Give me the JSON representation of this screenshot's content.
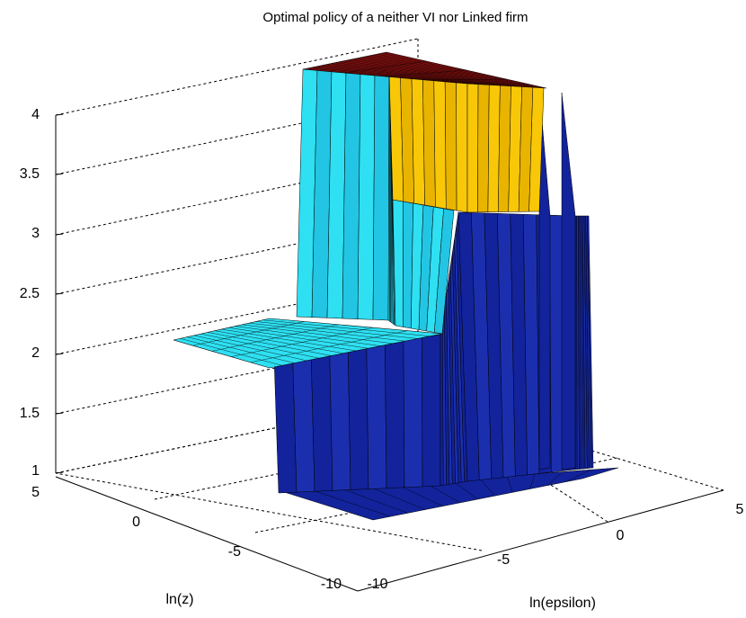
{
  "chart_data": {
    "type": "surface",
    "title": "Optimal policy of a neither VI nor Linked firm",
    "xlabel": "ln(epsilon)",
    "ylabel": "ln(z)",
    "zlabel": "",
    "x_ticks": [
      "-10",
      "-5",
      "0",
      "5"
    ],
    "y_ticks": [
      "-10",
      "-5",
      "0",
      "5"
    ],
    "z_ticks": [
      "1",
      "1.5",
      "2",
      "2.5",
      "3",
      "3.5",
      "4"
    ],
    "xlim": [
      -10,
      5
    ],
    "ylim": [
      -10,
      5
    ],
    "zlim": [
      1,
      4
    ],
    "grid": true,
    "policy_levels": [
      {
        "value": 1,
        "color": "#12239b"
      },
      {
        "value": 2,
        "color": "#2ee0f2"
      },
      {
        "value": 3,
        "color": "#f8c808"
      },
      {
        "value": 4,
        "color": "#7c0f0f"
      }
    ]
  }
}
